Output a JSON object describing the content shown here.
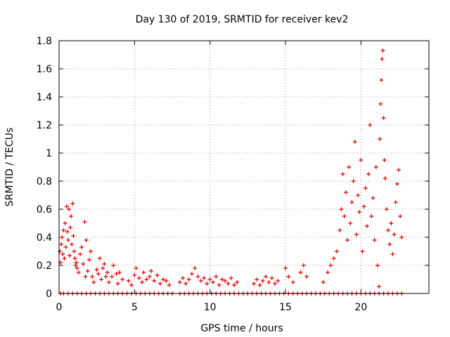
{
  "chart_data": {
    "type": "scatter",
    "title": "Day 130 of 2019, SRMTID for receiver kev2",
    "xlabel": "GPS time / hours",
    "ylabel": "SRMTID / TECUs",
    "xlim": [
      0,
      24.5
    ],
    "ylim": [
      0,
      1.8
    ],
    "grid": true,
    "marker": "+",
    "color": "#e00000",
    "x_ticks": [
      0,
      5,
      10,
      15,
      20
    ],
    "x_tick_labels": [
      "0",
      "5",
      "10",
      "15",
      "20"
    ],
    "y_ticks": [
      0,
      0.2,
      0.4,
      0.6,
      0.8,
      1.0,
      1.2,
      1.4,
      1.6,
      1.8
    ],
    "y_tick_labels": [
      "0",
      "0.2",
      "0.4",
      "0.6",
      "0.8",
      "1",
      "1.2",
      "1.4",
      "1.6",
      "1.8"
    ],
    "series": [
      {
        "name": "SRMTID",
        "points": [
          [
            0.05,
            0.3
          ],
          [
            0.1,
            0.22
          ],
          [
            0.15,
            0.35
          ],
          [
            0.2,
            0.4
          ],
          [
            0.25,
            0.28
          ],
          [
            0.3,
            0.45
          ],
          [
            0.35,
            0.25
          ],
          [
            0.4,
            0.5
          ],
          [
            0.45,
            0.33
          ],
          [
            0.5,
            0.62
          ],
          [
            0.55,
            0.44
          ],
          [
            0.6,
            0.38
          ],
          [
            0.65,
            0.6
          ],
          [
            0.7,
            0.27
          ],
          [
            0.75,
            0.47
          ],
          [
            0.8,
            0.55
          ],
          [
            0.85,
            0.35
          ],
          [
            0.9,
            0.64
          ],
          [
            0.95,
            0.41
          ],
          [
            1.0,
            0.3
          ],
          [
            1.05,
            0.25
          ],
          [
            1.1,
            0.2
          ],
          [
            1.15,
            0.22
          ],
          [
            1.2,
            0.18
          ],
          [
            1.3,
            0.15
          ],
          [
            1.4,
            0.28
          ],
          [
            1.5,
            0.33
          ],
          [
            1.6,
            0.21
          ],
          [
            1.7,
            0.51
          ],
          [
            1.75,
            0.12
          ],
          [
            1.8,
            0.38
          ],
          [
            1.9,
            0.16
          ],
          [
            2.0,
            0.24
          ],
          [
            2.1,
            0.3
          ],
          [
            2.2,
            0.12
          ],
          [
            2.3,
            0.08
          ],
          [
            2.5,
            0.17
          ],
          [
            2.6,
            0.14
          ],
          [
            2.7,
            0.25
          ],
          [
            2.8,
            0.1
          ],
          [
            2.9,
            0.18
          ],
          [
            3.0,
            0.21
          ],
          [
            3.1,
            0.12
          ],
          [
            3.2,
            0.15
          ],
          [
            3.3,
            0.08
          ],
          [
            3.5,
            0.12
          ],
          [
            3.6,
            0.2
          ],
          [
            3.8,
            0.14
          ],
          [
            3.9,
            0.07
          ],
          [
            4.0,
            0.15
          ],
          [
            4.2,
            0.1
          ],
          [
            4.6,
            0.09
          ],
          [
            4.8,
            0.06
          ],
          [
            5.0,
            0.13
          ],
          [
            5.1,
            0.18
          ],
          [
            5.3,
            0.11
          ],
          [
            5.5,
            0.08
          ],
          [
            5.6,
            0.15
          ],
          [
            5.8,
            0.1
          ],
          [
            6.0,
            0.12
          ],
          [
            6.1,
            0.16
          ],
          [
            6.3,
            0.09
          ],
          [
            6.5,
            0.13
          ],
          [
            6.7,
            0.07
          ],
          [
            6.9,
            0.1
          ],
          [
            7.1,
            0.09
          ],
          [
            7.3,
            0.06
          ],
          [
            8.0,
            0.08
          ],
          [
            8.2,
            0.11
          ],
          [
            8.4,
            0.07
          ],
          [
            8.6,
            0.1
          ],
          [
            8.8,
            0.14
          ],
          [
            9.0,
            0.18
          ],
          [
            9.2,
            0.12
          ],
          [
            9.4,
            0.09
          ],
          [
            9.6,
            0.11
          ],
          [
            9.8,
            0.07
          ],
          [
            10.0,
            0.1
          ],
          [
            10.2,
            0.08
          ],
          [
            10.4,
            0.12
          ],
          [
            10.6,
            0.06
          ],
          [
            10.8,
            0.1
          ],
          [
            11.0,
            0.09
          ],
          [
            11.2,
            0.07
          ],
          [
            11.4,
            0.11
          ],
          [
            11.6,
            0.06
          ],
          [
            11.8,
            0.08
          ],
          [
            12.9,
            0.07
          ],
          [
            13.1,
            0.1
          ],
          [
            13.3,
            0.06
          ],
          [
            13.5,
            0.09
          ],
          [
            13.7,
            0.12
          ],
          [
            13.9,
            0.08
          ],
          [
            14.1,
            0.11
          ],
          [
            14.3,
            0.07
          ],
          [
            14.5,
            0.09
          ],
          [
            15.0,
            0.18
          ],
          [
            15.2,
            0.12
          ],
          [
            15.5,
            0.08
          ],
          [
            16.0,
            0.15
          ],
          [
            16.2,
            0.2
          ],
          [
            16.4,
            0.12
          ],
          [
            17.5,
            0.08
          ],
          [
            17.8,
            0.15
          ],
          [
            18.0,
            0.2
          ],
          [
            18.2,
            0.25
          ],
          [
            18.4,
            0.3
          ],
          [
            18.6,
            0.45
          ],
          [
            18.7,
            0.6
          ],
          [
            18.8,
            0.85
          ],
          [
            18.9,
            0.55
          ],
          [
            19.0,
            0.72
          ],
          [
            19.1,
            0.38
          ],
          [
            19.2,
            0.9
          ],
          [
            19.3,
            0.5
          ],
          [
            19.4,
            0.65
          ],
          [
            19.5,
            0.8
          ],
          [
            19.6,
            1.08
          ],
          [
            19.7,
            0.42
          ],
          [
            19.8,
            0.7
          ],
          [
            19.9,
            0.58
          ],
          [
            20.0,
            0.95
          ],
          [
            20.1,
            0.3
          ],
          [
            20.2,
            0.62
          ],
          [
            20.3,
            0.75
          ],
          [
            20.4,
            0.48
          ],
          [
            20.5,
            0.85
          ],
          [
            20.6,
            1.2
          ],
          [
            20.7,
            0.55
          ],
          [
            20.8,
            0.68
          ],
          [
            20.9,
            0.38
          ],
          [
            21.0,
            0.9
          ],
          [
            21.1,
            0.2
          ],
          [
            21.2,
            0.05
          ],
          [
            21.25,
            1.1
          ],
          [
            21.3,
            1.35
          ],
          [
            21.35,
            1.52
          ],
          [
            21.4,
            1.67
          ],
          [
            21.45,
            1.73
          ],
          [
            21.5,
            1.25
          ],
          [
            21.55,
            0.95
          ],
          [
            21.6,
            0.82
          ],
          [
            21.7,
            0.6
          ],
          [
            21.8,
            0.45
          ],
          [
            21.9,
            0.35
          ],
          [
            22.0,
            0.5
          ],
          [
            22.1,
            0.28
          ],
          [
            22.2,
            0.42
          ],
          [
            22.3,
            0.65
          ],
          [
            22.4,
            0.78
          ],
          [
            22.5,
            0.88
          ],
          [
            22.6,
            0.55
          ],
          [
            22.7,
            0.4
          ]
        ]
      }
    ],
    "zero_points_x": [
      0.1,
      0.3,
      0.6,
      0.9,
      1.2,
      1.5,
      1.8,
      2.1,
      2.4,
      2.7,
      3.0,
      3.3,
      3.6,
      3.9,
      4.2,
      4.5,
      4.8,
      5.1,
      5.4,
      5.7,
      6.0,
      6.3,
      6.6,
      6.9,
      7.2,
      7.5,
      8.0,
      8.3,
      8.6,
      8.9,
      9.2,
      9.5,
      9.8,
      10.1,
      10.4,
      10.7,
      11.0,
      11.3,
      11.6,
      11.9,
      12.2,
      12.5,
      12.8,
      13.1,
      13.4,
      13.7,
      14.0,
      14.3,
      14.6,
      14.9,
      15.2,
      15.5,
      15.8,
      16.1,
      16.4,
      16.7,
      17.0,
      17.3,
      17.6,
      17.9,
      18.2,
      18.5,
      18.8,
      19.1,
      19.4,
      19.7,
      20.0,
      20.3,
      20.6,
      20.9,
      21.2,
      21.5,
      21.8,
      22.1,
      22.4,
      22.7
    ]
  }
}
